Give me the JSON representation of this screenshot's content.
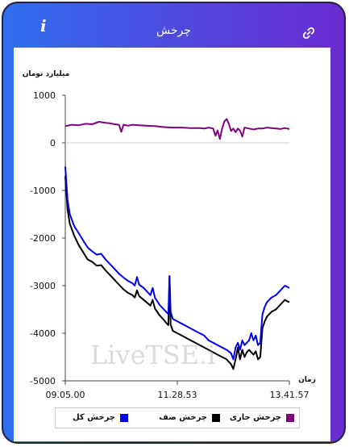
{
  "header": {
    "title": "چرخش",
    "info_label": "i",
    "info_icon": "info-icon",
    "link_icon": "link-icon"
  },
  "watermark": "LiveTSE.i",
  "chart_data": {
    "type": "line",
    "ylabel": "میلیارد تومان",
    "xlabel": "زمان",
    "ylim": [
      -5000,
      1000
    ],
    "yticks": [
      1000,
      0,
      -1000,
      -2000,
      -3000,
      -4000,
      -5000
    ],
    "ytick_labels": [
      "1000",
      "0",
      "-1000",
      "-2000",
      "-3000",
      "-4000",
      "-5000"
    ],
    "xlim": [
      0,
      1
    ],
    "xtick_positions": [
      0,
      0.5,
      1
    ],
    "xtick_labels": [
      "09.05.00",
      "11.28.53",
      "13.41.57"
    ],
    "grid": false,
    "zero_line": true,
    "legend_placement": "bottom",
    "series": [
      {
        "name": "چرخش کل",
        "color": "#0000ee",
        "points": [
          [
            0.0,
            -500
          ],
          [
            0.01,
            -1200
          ],
          [
            0.02,
            -1500
          ],
          [
            0.04,
            -1750
          ],
          [
            0.06,
            -1900
          ],
          [
            0.08,
            -2050
          ],
          [
            0.1,
            -2200
          ],
          [
            0.12,
            -2280
          ],
          [
            0.14,
            -2350
          ],
          [
            0.16,
            -2330
          ],
          [
            0.18,
            -2450
          ],
          [
            0.2,
            -2550
          ],
          [
            0.22,
            -2650
          ],
          [
            0.24,
            -2750
          ],
          [
            0.26,
            -2830
          ],
          [
            0.28,
            -2900
          ],
          [
            0.3,
            -2950
          ],
          [
            0.31,
            -3000
          ],
          [
            0.32,
            -2820
          ],
          [
            0.33,
            -2980
          ],
          [
            0.35,
            -3050
          ],
          [
            0.37,
            -3150
          ],
          [
            0.38,
            -3200
          ],
          [
            0.39,
            -3050
          ],
          [
            0.4,
            -3250
          ],
          [
            0.42,
            -3400
          ],
          [
            0.44,
            -3500
          ],
          [
            0.45,
            -3550
          ],
          [
            0.46,
            -3600
          ],
          [
            0.465,
            -2800
          ],
          [
            0.47,
            -3550
          ],
          [
            0.48,
            -3700
          ],
          [
            0.5,
            -3750
          ],
          [
            0.52,
            -3800
          ],
          [
            0.54,
            -3850
          ],
          [
            0.56,
            -3900
          ],
          [
            0.58,
            -3950
          ],
          [
            0.6,
            -4000
          ],
          [
            0.62,
            -4050
          ],
          [
            0.64,
            -4150
          ],
          [
            0.66,
            -4200
          ],
          [
            0.68,
            -4250
          ],
          [
            0.7,
            -4300
          ],
          [
            0.72,
            -4350
          ],
          [
            0.74,
            -4420
          ],
          [
            0.75,
            -4550
          ],
          [
            0.76,
            -4300
          ],
          [
            0.77,
            -4200
          ],
          [
            0.78,
            -4350
          ],
          [
            0.79,
            -4150
          ],
          [
            0.8,
            -4250
          ],
          [
            0.81,
            -4200
          ],
          [
            0.82,
            -4150
          ],
          [
            0.83,
            -4000
          ],
          [
            0.84,
            -4150
          ],
          [
            0.85,
            -4050
          ],
          [
            0.86,
            -4250
          ],
          [
            0.87,
            -4200
          ],
          [
            0.88,
            -3600
          ],
          [
            0.89,
            -3450
          ],
          [
            0.9,
            -3350
          ],
          [
            0.91,
            -3300
          ],
          [
            0.92,
            -3250
          ],
          [
            0.94,
            -3200
          ],
          [
            0.96,
            -3100
          ],
          [
            0.98,
            -3000
          ],
          [
            1.0,
            -3050
          ]
        ]
      },
      {
        "name": "چرخش صف",
        "color": "#000000",
        "points": [
          [
            0.0,
            -700
          ],
          [
            0.01,
            -1400
          ],
          [
            0.02,
            -1700
          ],
          [
            0.04,
            -1950
          ],
          [
            0.06,
            -2150
          ],
          [
            0.08,
            -2300
          ],
          [
            0.1,
            -2450
          ],
          [
            0.12,
            -2500
          ],
          [
            0.14,
            -2580
          ],
          [
            0.16,
            -2570
          ],
          [
            0.18,
            -2680
          ],
          [
            0.2,
            -2780
          ],
          [
            0.22,
            -2880
          ],
          [
            0.24,
            -2980
          ],
          [
            0.26,
            -3080
          ],
          [
            0.28,
            -3150
          ],
          [
            0.3,
            -3200
          ],
          [
            0.31,
            -3250
          ],
          [
            0.32,
            -3100
          ],
          [
            0.33,
            -3220
          ],
          [
            0.35,
            -3300
          ],
          [
            0.37,
            -3380
          ],
          [
            0.38,
            -3420
          ],
          [
            0.39,
            -3300
          ],
          [
            0.4,
            -3480
          ],
          [
            0.42,
            -3620
          ],
          [
            0.44,
            -3720
          ],
          [
            0.45,
            -3780
          ],
          [
            0.46,
            -3830
          ],
          [
            0.465,
            -2800
          ],
          [
            0.47,
            -3820
          ],
          [
            0.48,
            -3950
          ],
          [
            0.5,
            -4000
          ],
          [
            0.52,
            -4050
          ],
          [
            0.54,
            -4100
          ],
          [
            0.56,
            -4150
          ],
          [
            0.58,
            -4200
          ],
          [
            0.6,
            -4250
          ],
          [
            0.62,
            -4300
          ],
          [
            0.64,
            -4350
          ],
          [
            0.66,
            -4400
          ],
          [
            0.68,
            -4450
          ],
          [
            0.7,
            -4500
          ],
          [
            0.72,
            -4550
          ],
          [
            0.74,
            -4650
          ],
          [
            0.75,
            -4750
          ],
          [
            0.76,
            -4550
          ],
          [
            0.77,
            -4300
          ],
          [
            0.78,
            -4550
          ],
          [
            0.79,
            -4350
          ],
          [
            0.8,
            -4500
          ],
          [
            0.81,
            -4400
          ],
          [
            0.82,
            -4350
          ],
          [
            0.83,
            -4400
          ],
          [
            0.84,
            -4450
          ],
          [
            0.85,
            -4380
          ],
          [
            0.86,
            -4550
          ],
          [
            0.87,
            -4500
          ],
          [
            0.88,
            -3900
          ],
          [
            0.89,
            -3750
          ],
          [
            0.9,
            -3650
          ],
          [
            0.91,
            -3600
          ],
          [
            0.92,
            -3550
          ],
          [
            0.94,
            -3500
          ],
          [
            0.96,
            -3400
          ],
          [
            0.98,
            -3300
          ],
          [
            1.0,
            -3350
          ]
        ]
      },
      {
        "name": "چرخش جاری",
        "color": "#800080",
        "points": [
          [
            0.0,
            350
          ],
          [
            0.03,
            380
          ],
          [
            0.06,
            370
          ],
          [
            0.09,
            400
          ],
          [
            0.12,
            390
          ],
          [
            0.15,
            440
          ],
          [
            0.18,
            420
          ],
          [
            0.2,
            410
          ],
          [
            0.22,
            390
          ],
          [
            0.24,
            380
          ],
          [
            0.25,
            230
          ],
          [
            0.26,
            380
          ],
          [
            0.28,
            360
          ],
          [
            0.3,
            380
          ],
          [
            0.33,
            370
          ],
          [
            0.36,
            360
          ],
          [
            0.4,
            350
          ],
          [
            0.44,
            330
          ],
          [
            0.48,
            320
          ],
          [
            0.52,
            320
          ],
          [
            0.56,
            310
          ],
          [
            0.6,
            310
          ],
          [
            0.62,
            300
          ],
          [
            0.64,
            320
          ],
          [
            0.66,
            300
          ],
          [
            0.67,
            150
          ],
          [
            0.68,
            260
          ],
          [
            0.69,
            80
          ],
          [
            0.7,
            300
          ],
          [
            0.71,
            450
          ],
          [
            0.72,
            500
          ],
          [
            0.73,
            400
          ],
          [
            0.74,
            250
          ],
          [
            0.75,
            300
          ],
          [
            0.76,
            220
          ],
          [
            0.77,
            300
          ],
          [
            0.78,
            260
          ],
          [
            0.79,
            130
          ],
          [
            0.8,
            320
          ],
          [
            0.82,
            300
          ],
          [
            0.84,
            280
          ],
          [
            0.86,
            300
          ],
          [
            0.88,
            300
          ],
          [
            0.9,
            320
          ],
          [
            0.92,
            310
          ],
          [
            0.94,
            300
          ],
          [
            0.96,
            290
          ],
          [
            0.98,
            310
          ],
          [
            1.0,
            290
          ]
        ]
      }
    ]
  }
}
